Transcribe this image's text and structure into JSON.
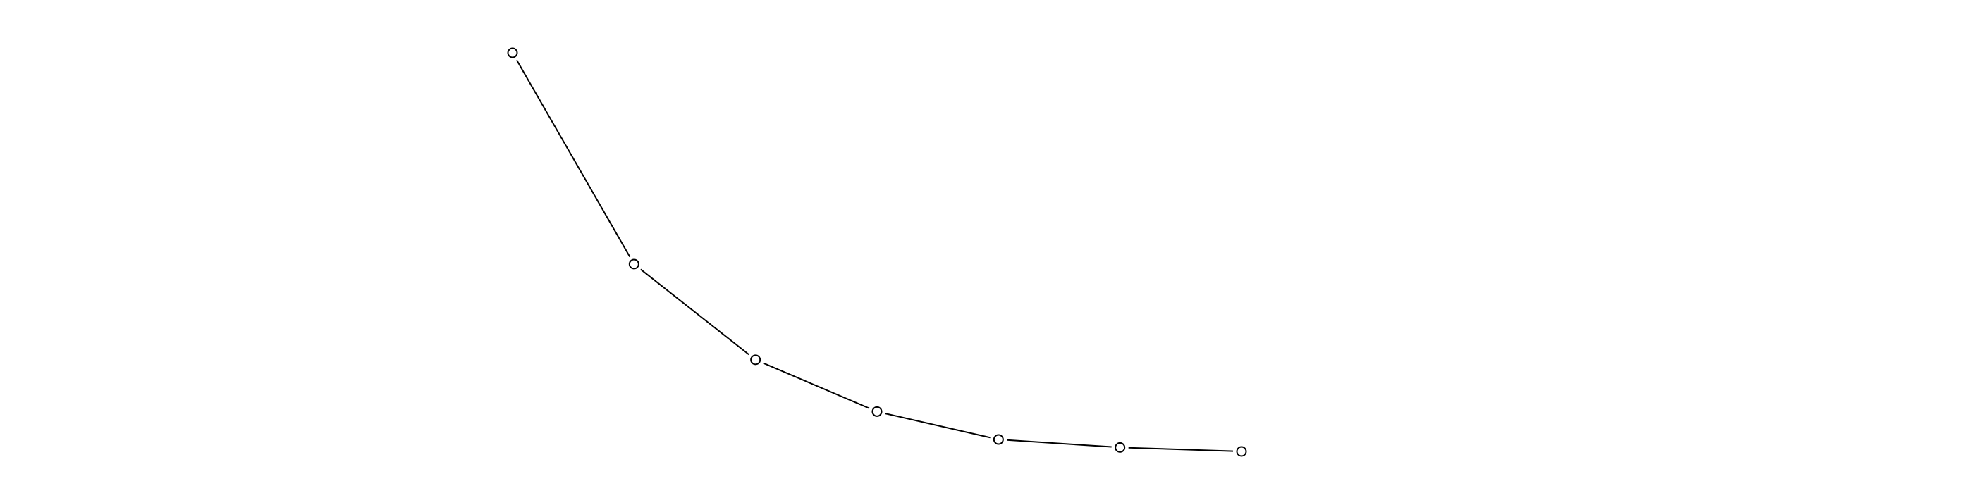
{
  "chart_data": {
    "type": "line",
    "x": [
      1,
      2,
      3,
      4,
      5,
      6,
      7
    ],
    "series": [
      {
        "values": [
          1.0,
          0.47,
          0.23,
          0.1,
          0.03,
          0.01,
          0.0
        ]
      }
    ],
    "marker": "open-circle",
    "grid": false,
    "axes_visible": false,
    "line_color": "#000000",
    "marker_color": "#000000",
    "background": "#ffffff"
  }
}
